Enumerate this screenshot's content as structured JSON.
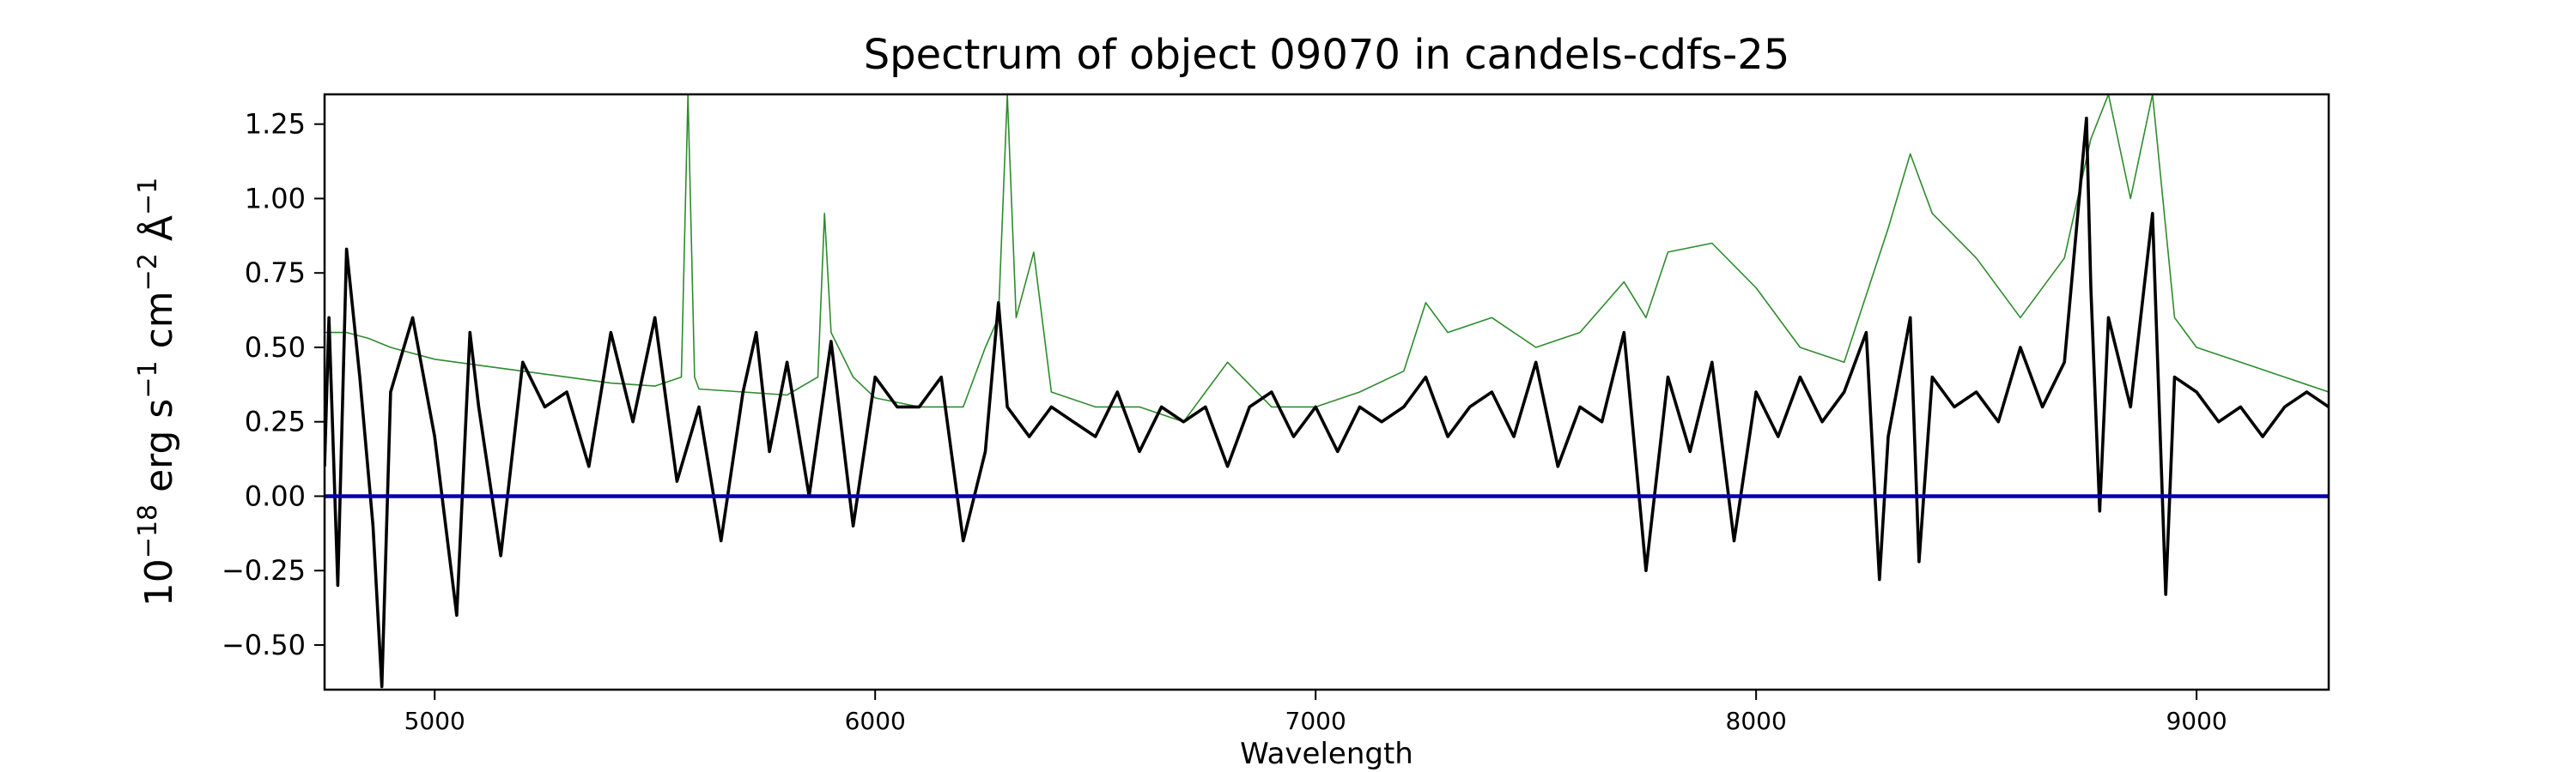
{
  "chart_data": {
    "type": "line",
    "title": "Spectrum of object 09070 in candels-cdfs-25",
    "xlabel": "Wavelength",
    "ylabel": {
      "base": "10",
      "exp1": "−18",
      "unit1": " erg s",
      "exp2": "−1",
      "unit2": " cm",
      "exp3": "−2",
      "unit3": " Å",
      "exp4": "−1"
    },
    "xlim": [
      4750,
      9300
    ],
    "ylim": [
      -0.65,
      1.35
    ],
    "x_ticks": [
      5000,
      6000,
      7000,
      8000,
      9000
    ],
    "x_tick_labels": [
      "5000",
      "6000",
      "7000",
      "8000",
      "9000"
    ],
    "y_ticks": [
      -0.5,
      -0.25,
      0.0,
      0.25,
      0.5,
      0.75,
      1.0,
      1.25
    ],
    "y_tick_labels": [
      "−0.50",
      "−0.25",
      "0.00",
      "0.25",
      "0.50",
      "0.75",
      "1.00",
      "1.25"
    ],
    "grid": false,
    "legend": "none",
    "series": [
      {
        "role": "model",
        "color": "#2e8b2e",
        "x": [
          4750,
          4800,
          4850,
          4900,
          5000,
          5100,
          5200,
          5300,
          5400,
          5500,
          5560,
          5575,
          5590,
          5600,
          5700,
          5800,
          5870,
          5885,
          5900,
          5950,
          6000,
          6100,
          6200,
          6250,
          6280,
          6300,
          6320,
          6360,
          6400,
          6500,
          6600,
          6700,
          6800,
          6900,
          7000,
          7100,
          7200,
          7250,
          7300,
          7400,
          7500,
          7600,
          7700,
          7750,
          7800,
          7900,
          8000,
          8100,
          8200,
          8300,
          8350,
          8400,
          8500,
          8600,
          8700,
          8760,
          8800,
          8850,
          8900,
          8950,
          9000,
          9100,
          9200,
          9300
        ],
        "y": [
          0.55,
          0.55,
          0.53,
          0.5,
          0.46,
          0.44,
          0.42,
          0.4,
          0.38,
          0.37,
          0.4,
          1.35,
          0.4,
          0.36,
          0.35,
          0.34,
          0.4,
          0.95,
          0.55,
          0.4,
          0.33,
          0.3,
          0.3,
          0.5,
          0.6,
          1.35,
          0.6,
          0.82,
          0.35,
          0.3,
          0.3,
          0.25,
          0.45,
          0.3,
          0.3,
          0.35,
          0.42,
          0.65,
          0.55,
          0.6,
          0.5,
          0.55,
          0.72,
          0.6,
          0.82,
          0.85,
          0.7,
          0.5,
          0.45,
          0.9,
          1.15,
          0.95,
          0.8,
          0.6,
          0.8,
          1.2,
          1.35,
          1.0,
          1.35,
          0.6,
          0.5,
          0.45,
          0.4,
          0.35
        ]
      },
      {
        "role": "observed",
        "color": "#000000",
        "x": [
          4750,
          4760,
          4780,
          4800,
          4830,
          4860,
          4880,
          4900,
          4950,
          5000,
          5050,
          5080,
          5100,
          5150,
          5200,
          5250,
          5300,
          5350,
          5400,
          5450,
          5500,
          5550,
          5600,
          5650,
          5700,
          5730,
          5760,
          5800,
          5850,
          5900,
          5950,
          6000,
          6050,
          6100,
          6150,
          6200,
          6250,
          6280,
          6300,
          6350,
          6400,
          6450,
          6500,
          6550,
          6600,
          6650,
          6700,
          6750,
          6800,
          6850,
          6900,
          6950,
          7000,
          7050,
          7100,
          7150,
          7200,
          7250,
          7300,
          7350,
          7400,
          7450,
          7500,
          7550,
          7600,
          7650,
          7700,
          7750,
          7800,
          7850,
          7900,
          7950,
          8000,
          8050,
          8100,
          8150,
          8200,
          8250,
          8280,
          8300,
          8350,
          8370,
          8400,
          8450,
          8500,
          8550,
          8600,
          8650,
          8700,
          8750,
          8760,
          8780,
          8800,
          8850,
          8900,
          8930,
          8950,
          9000,
          9050,
          9100,
          9150,
          9200,
          9250,
          9300
        ],
        "y": [
          0.1,
          0.6,
          -0.3,
          0.83,
          0.4,
          -0.1,
          -0.64,
          0.35,
          0.6,
          0.2,
          -0.4,
          0.55,
          0.3,
          -0.2,
          0.45,
          0.3,
          0.35,
          0.1,
          0.55,
          0.25,
          0.6,
          0.05,
          0.3,
          -0.15,
          0.35,
          0.55,
          0.15,
          0.45,
          0.0,
          0.52,
          -0.1,
          0.4,
          0.3,
          0.3,
          0.4,
          -0.15,
          0.15,
          0.65,
          0.3,
          0.2,
          0.3,
          0.25,
          0.2,
          0.35,
          0.15,
          0.3,
          0.25,
          0.3,
          0.1,
          0.3,
          0.35,
          0.2,
          0.3,
          0.15,
          0.3,
          0.25,
          0.3,
          0.4,
          0.2,
          0.3,
          0.35,
          0.2,
          0.45,
          0.1,
          0.3,
          0.25,
          0.55,
          -0.25,
          0.4,
          0.15,
          0.45,
          -0.15,
          0.35,
          0.2,
          0.4,
          0.25,
          0.35,
          0.55,
          -0.28,
          0.2,
          0.6,
          -0.22,
          0.4,
          0.3,
          0.35,
          0.25,
          0.5,
          0.3,
          0.45,
          1.27,
          0.7,
          -0.05,
          0.6,
          0.3,
          0.95,
          -0.33,
          0.4,
          0.35,
          0.25,
          0.3,
          0.2,
          0.3,
          0.35,
          0.3
        ]
      },
      {
        "role": "zero-line",
        "color": "#0000aa",
        "x": [
          4750,
          9300
        ],
        "y": [
          0,
          0
        ]
      }
    ]
  }
}
